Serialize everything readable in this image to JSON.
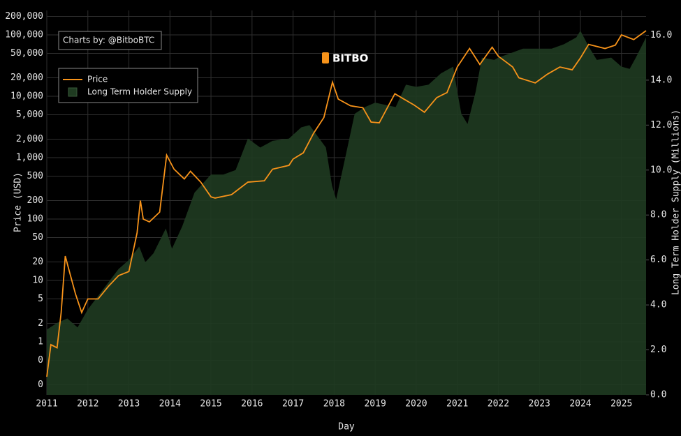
{
  "chart_data": {
    "type": "line",
    "watermark": "BITBO",
    "credit": "Charts by: @BitboBTC",
    "x_label": "Day",
    "y_label": "Price (USD)",
    "y2_label": "Long Term Holder Supply (Millions)",
    "xlim": [
      2011,
      2025.6
    ],
    "xticks": [
      2011,
      2012,
      2013,
      2014,
      2015,
      2016,
      2017,
      2018,
      2019,
      2020,
      2021,
      2022,
      2023,
      2024,
      2025
    ],
    "ylim": [
      0.137,
      250000
    ],
    "y_scale": "log",
    "yticks": [
      {
        "value": 0.2,
        "label": "0"
      },
      {
        "value": 0.5,
        "label": "0"
      },
      1,
      2,
      5,
      10,
      20,
      50,
      100,
      200,
      500,
      {
        "value": 1000,
        "label": "1,000"
      },
      {
        "value": 2000,
        "label": "2,000"
      },
      {
        "value": 5000,
        "label": "5,000"
      },
      {
        "value": 10000,
        "label": "10,000"
      },
      {
        "value": 20000,
        "label": "20,000"
      },
      {
        "value": 50000,
        "label": "50,000"
      },
      {
        "value": 100000,
        "label": "100,000"
      },
      {
        "value": 200000,
        "label": "200,000"
      }
    ],
    "y2lim": [
      0,
      17.1
    ],
    "y2ticks": [
      {
        "value": 0,
        "label": "0.0"
      },
      {
        "value": 2,
        "label": "2.0"
      },
      {
        "value": 4,
        "label": "4.0"
      },
      {
        "value": 6,
        "label": "6.0"
      },
      {
        "value": 8,
        "label": "8.0"
      },
      {
        "value": 10,
        "label": "10.0"
      },
      {
        "value": 12,
        "label": "12.0"
      },
      {
        "value": 14,
        "label": "14.0"
      },
      {
        "value": 16,
        "label": "16.0"
      }
    ],
    "grid": true,
    "legend": "top-left",
    "series": [
      {
        "name": "Price",
        "color": "#f7931a",
        "kind": "line",
        "x": [
          2011.0,
          2011.1,
          2011.25,
          2011.35,
          2011.45,
          2011.55,
          2011.7,
          2011.85,
          2012.0,
          2012.25,
          2012.5,
          2012.75,
          2013.0,
          2013.2,
          2013.28,
          2013.35,
          2013.5,
          2013.75,
          2013.92,
          2014.1,
          2014.35,
          2014.5,
          2014.75,
          2015.0,
          2015.1,
          2015.5,
          2015.9,
          2016.3,
          2016.5,
          2016.9,
          2017.0,
          2017.25,
          2017.5,
          2017.75,
          2017.96,
          2018.1,
          2018.4,
          2018.7,
          2018.9,
          2019.1,
          2019.48,
          2019.7,
          2019.95,
          2020.2,
          2020.5,
          2020.75,
          2021.0,
          2021.3,
          2021.55,
          2021.85,
          2022.0,
          2022.35,
          2022.5,
          2022.9,
          2023.2,
          2023.5,
          2023.8,
          2024.0,
          2024.2,
          2024.6,
          2024.85,
          2025.0,
          2025.3,
          2025.6
        ],
        "values": [
          0.27,
          0.9,
          0.8,
          3,
          25,
          14,
          6,
          3,
          5,
          5,
          8,
          12,
          14,
          60,
          200,
          100,
          90,
          130,
          1100,
          650,
          450,
          600,
          400,
          230,
          220,
          250,
          400,
          420,
          650,
          750,
          950,
          1200,
          2500,
          4500,
          17000,
          9000,
          7000,
          6500,
          3800,
          3700,
          11000,
          9000,
          7200,
          5500,
          9500,
          11500,
          30000,
          60000,
          33000,
          63000,
          45000,
          30000,
          20000,
          16500,
          23000,
          30000,
          27000,
          42000,
          70000,
          60000,
          68000,
          100000,
          84000,
          117000
        ]
      },
      {
        "name": "Long Term Holder Supply",
        "color": "#1f3b21",
        "kind": "area",
        "axis": "y2",
        "x": [
          2011.0,
          2011.25,
          2011.5,
          2011.75,
          2012.0,
          2012.25,
          2012.5,
          2012.75,
          2013.0,
          2013.25,
          2013.4,
          2013.6,
          2013.9,
          2014.05,
          2014.3,
          2014.6,
          2015.0,
          2015.3,
          2015.6,
          2015.9,
          2016.2,
          2016.5,
          2016.9,
          2017.2,
          2017.4,
          2017.6,
          2017.8,
          2017.95,
          2018.05,
          2018.3,
          2018.5,
          2018.75,
          2019.0,
          2019.25,
          2019.5,
          2019.75,
          2020.0,
          2020.3,
          2020.6,
          2020.9,
          2021.0,
          2021.1,
          2021.25,
          2021.45,
          2021.6,
          2021.9,
          2022.0,
          2022.3,
          2022.6,
          2022.9,
          2023.3,
          2023.6,
          2023.9,
          2024.0,
          2024.2,
          2024.4,
          2024.75,
          2025.0,
          2025.2,
          2025.35,
          2025.6
        ],
        "values": [
          2.9,
          3.2,
          3.4,
          3.0,
          3.8,
          4.4,
          5.0,
          5.6,
          6.0,
          6.6,
          5.9,
          6.3,
          7.4,
          6.5,
          7.5,
          9.0,
          9.8,
          9.8,
          10.0,
          11.4,
          11.0,
          11.3,
          11.4,
          11.9,
          12.0,
          11.5,
          11.0,
          9.3,
          8.7,
          10.8,
          12.5,
          12.8,
          13.0,
          12.9,
          12.8,
          13.8,
          13.7,
          13.8,
          14.3,
          14.6,
          13.5,
          12.5,
          12.05,
          13.5,
          15.0,
          14.9,
          15.0,
          15.2,
          15.4,
          15.4,
          15.4,
          15.6,
          15.9,
          16.2,
          15.5,
          14.9,
          15.0,
          14.6,
          14.5,
          15.0,
          15.9
        ]
      }
    ]
  }
}
